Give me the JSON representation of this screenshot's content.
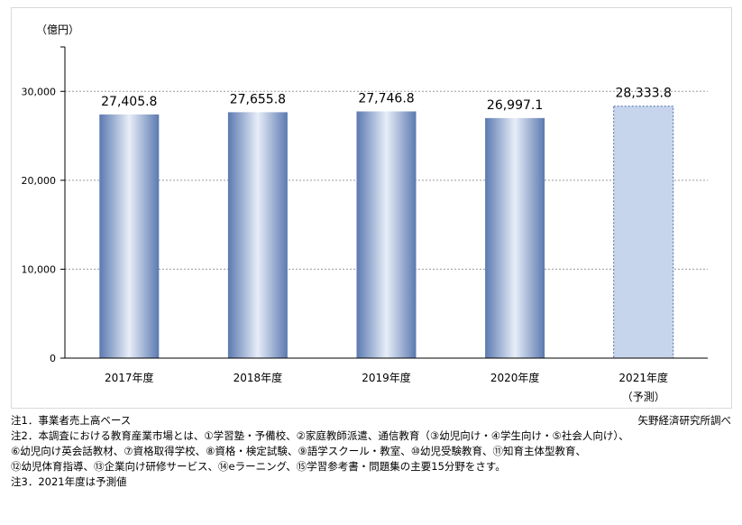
{
  "chart_data": {
    "type": "bar",
    "unit_label": "（億円）",
    "categories": [
      "2017年度",
      "2018年度",
      "2019年度",
      "2020年度",
      "2021年度"
    ],
    "category_sublabels": [
      "",
      "",
      "",
      "",
      "（予測）"
    ],
    "values": [
      27405.8,
      27655.8,
      27746.8,
      26997.1,
      28333.8
    ],
    "value_labels": [
      "27,405.8",
      "27,655.8",
      "27,746.8",
      "26,997.1",
      "28,333.8"
    ],
    "forecast": [
      false,
      false,
      false,
      false,
      true
    ],
    "ylim": [
      0,
      35000
    ],
    "yticks": [
      0,
      10000,
      20000,
      30000
    ],
    "ytick_labels": [
      "0",
      "10,000",
      "20,000",
      "30,000"
    ],
    "grid": true,
    "colors": {
      "bar_edge": "#5b79b0",
      "bar_center": "#e8eef8",
      "forecast_fill": "#c7d5ec",
      "grid": "#9a9a9a"
    }
  },
  "notes": [
    "注1．事業者売上高ベース",
    "注2．本調査における教育産業市場とは、①学習塾・予備校、②家庭教師派遣、通信教育（③幼児向け・④学生向け・⑤社会人向け）、",
    "⑥幼児向け英会話教材、⑦資格取得学校、⑧資格・検定試験、⑨語学スクール・教室、⑩幼児受験教育、⑪知育主体型教育、",
    "⑫幼児体育指導、⑬企業向け研修サービス、⑭eラーニング、⑮学習参考書・問題集の主要15分野をさす。",
    "注3．2021年度は予測値"
  ],
  "source": "矢野経済研究所調べ"
}
